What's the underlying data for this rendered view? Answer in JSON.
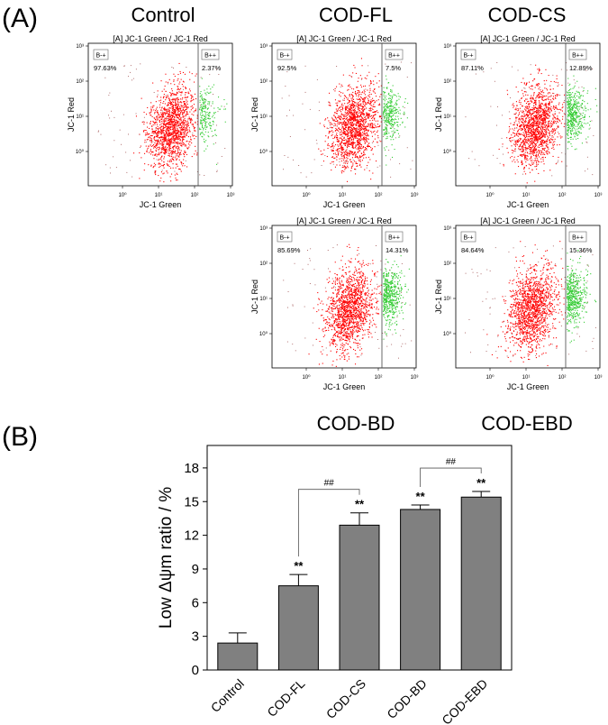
{
  "panel_a_label": "(A)",
  "panel_b_label": "(B)",
  "flow": {
    "plot_title": "[A] JC-1 Green / JC-1 Red",
    "xlabel": "JC-1 Green",
    "ylabel": "JC-1 Red",
    "gate_left": "B-+",
    "gate_right": "B++",
    "ticks": [
      "10⁰",
      "10¹",
      "10²",
      "10³"
    ],
    "panels": [
      {
        "condition": "Control",
        "left_pct": "97.63%",
        "right_pct": "2.37%",
        "green_fraction": 0.0237
      },
      {
        "condition": "COD-FL",
        "left_pct": "92.5%",
        "right_pct": "7.5%",
        "green_fraction": 0.075
      },
      {
        "condition": "COD-CS",
        "left_pct": "87.11%",
        "right_pct": "12.89%",
        "green_fraction": 0.1289
      },
      {
        "condition": "COD-BD",
        "left_pct": "85.69%",
        "right_pct": "14.31%",
        "green_fraction": 0.1431
      },
      {
        "condition": "COD-EBD",
        "left_pct": "84.64%",
        "right_pct": "15.36%",
        "green_fraction": 0.1536
      }
    ]
  },
  "chart_data": {
    "type": "bar",
    "categories": [
      "Control",
      "COD-FL",
      "COD-CS",
      "COD-BD",
      "COD-EBD"
    ],
    "values": [
      2.4,
      7.5,
      12.9,
      14.3,
      15.4
    ],
    "errors": [
      0.9,
      1.0,
      1.1,
      0.4,
      0.5
    ],
    "significance": [
      "",
      "**",
      "**",
      "**",
      "**"
    ],
    "comparisons": [
      {
        "from": 1,
        "to": 2,
        "label": "##"
      },
      {
        "from": 3,
        "to": 4,
        "label": "##"
      }
    ],
    "ylabel": "Low Δψm ratio / %",
    "ylim": [
      0,
      20
    ],
    "yticks": [
      0,
      3,
      6,
      9,
      12,
      15,
      18
    ],
    "bar_color": "#808080"
  },
  "colors": {
    "red_pop": "#ff0000",
    "green_pop": "#33cc33",
    "scatter_dot": "#a05050"
  }
}
